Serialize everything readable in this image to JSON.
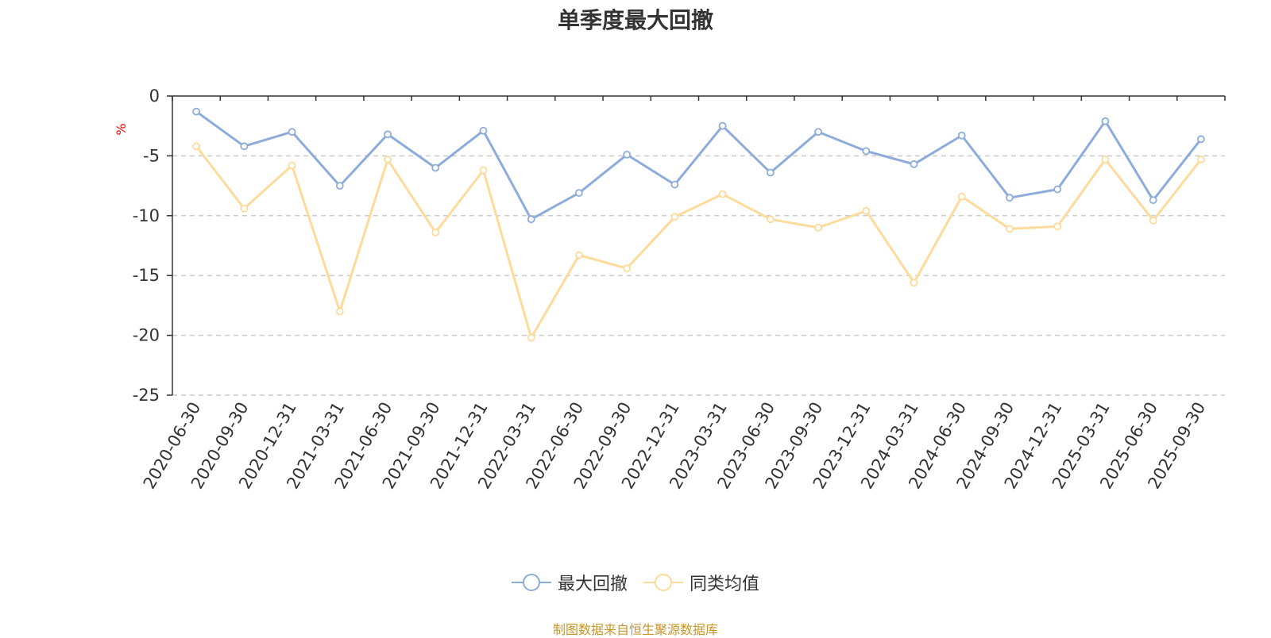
{
  "title": "单季度最大回撤",
  "source_note": "制图数据来自恒生聚源数据库",
  "colors": {
    "series1": "#8eacda",
    "series2": "#fcdb9b",
    "axis": "#333333",
    "grid": "#cccccc",
    "unit": "#ff0000",
    "source": "#c8962a"
  },
  "chart_data": {
    "type": "line",
    "y_unit": "%",
    "ylim": [
      -25,
      0
    ],
    "yticks": [
      0,
      -5,
      -10,
      -15,
      -20,
      -25
    ],
    "grid": true,
    "legend_position": "bottom",
    "x": [
      "2020-06-30",
      "2020-09-30",
      "2020-12-31",
      "2021-03-31",
      "2021-06-30",
      "2021-09-30",
      "2021-12-31",
      "2022-03-31",
      "2022-06-30",
      "2022-09-30",
      "2022-12-31",
      "2023-03-31",
      "2023-06-30",
      "2023-09-30",
      "2023-12-31",
      "2024-03-31",
      "2024-06-30",
      "2024-09-30",
      "2024-12-31",
      "2025-03-31",
      "2025-06-30",
      "2025-09-30"
    ],
    "series": [
      {
        "name": "最大回撤",
        "values": [
          -1.3,
          -4.2,
          -3.0,
          -7.5,
          -3.2,
          -6.0,
          -2.9,
          -10.3,
          -8.1,
          -4.9,
          -7.4,
          -2.5,
          -6.4,
          -3.0,
          -4.6,
          -5.7,
          -3.3,
          -8.5,
          -7.8,
          -2.1,
          -8.7,
          -3.6
        ]
      },
      {
        "name": "同类均值",
        "values": [
          -4.2,
          -9.4,
          -5.8,
          -18.0,
          -5.3,
          -11.4,
          -6.2,
          -20.2,
          -13.3,
          -14.4,
          -10.1,
          -8.2,
          -10.3,
          -11.0,
          -9.6,
          -15.6,
          -8.4,
          -11.1,
          -10.9,
          -5.3,
          -10.4,
          -5.3
        ]
      }
    ]
  }
}
